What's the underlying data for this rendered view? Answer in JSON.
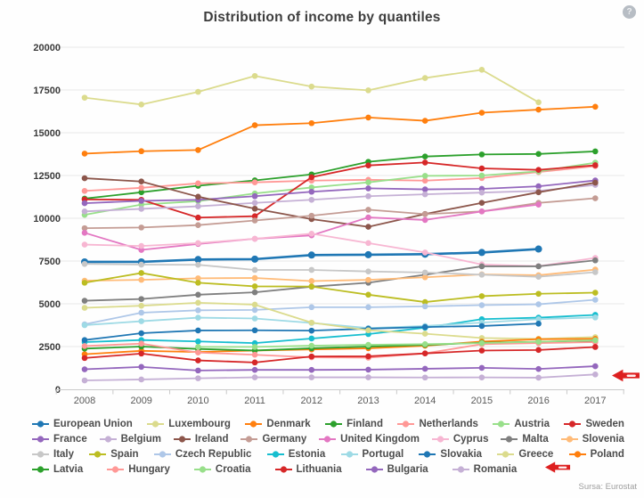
{
  "header": {
    "title": "Distribution of income by quantiles",
    "help_icon_glyph": "?"
  },
  "footer": {
    "source": "Sursa: Eurostat"
  },
  "annotation": {
    "arrow_color": "#dd1f1f",
    "arrows": [
      {
        "type": "arrow-left",
        "target": "Romania 2017 data point (lowest line, right edge of plot)"
      },
      {
        "type": "arrow-left",
        "target": "Romania legend item"
      }
    ]
  },
  "chart_data": {
    "type": "line",
    "title": "Distribution of income by quantiles",
    "x": [
      2008,
      2009,
      2010,
      2011,
      2012,
      2013,
      2014,
      2015,
      2016,
      2017
    ],
    "ylim": [
      0,
      20000
    ],
    "ytick_step": 2500,
    "grid": "horizontal",
    "legend_position": "bottom",
    "legend_rows": [
      7,
      8,
      8,
      6
    ],
    "series": [
      {
        "name": "European Union",
        "color": "#1f77b4",
        "values": [
          7450,
          7450,
          7590,
          7610,
          7850,
          7870,
          7900,
          8000,
          8200,
          null
        ]
      },
      {
        "name": "Luxembourg",
        "color": "#dbdb8d",
        "values": [
          17050,
          16650,
          17390,
          18320,
          17700,
          17480,
          18200,
          18680,
          16780,
          null
        ]
      },
      {
        "name": "Denmark",
        "color": "#ff7f0e",
        "values": [
          13780,
          13920,
          13990,
          15440,
          15560,
          15890,
          15700,
          16170,
          16350,
          16520
        ]
      },
      {
        "name": "Finland",
        "color": "#2ca02c",
        "values": [
          11150,
          11520,
          11900,
          12215,
          12565,
          13300,
          13610,
          13730,
          13760,
          13910
        ]
      },
      {
        "name": "Netherlands",
        "color": "#ff9896",
        "values": [
          11600,
          11780,
          12040,
          12100,
          12200,
          12250,
          12200,
          12350,
          12700,
          13050
        ]
      },
      {
        "name": "Austria",
        "color": "#98df8a",
        "values": [
          10200,
          10800,
          11000,
          11450,
          11800,
          12100,
          12480,
          12500,
          12740,
          13250
        ]
      },
      {
        "name": "Sweden",
        "color": "#d62728",
        "values": [
          11100,
          11080,
          10040,
          10120,
          12400,
          13090,
          13260,
          12915,
          12830,
          13100
        ]
      },
      {
        "name": "France",
        "color": "#9467bd",
        "values": [
          10880,
          11020,
          11080,
          11290,
          11550,
          11750,
          11690,
          11720,
          11870,
          12210
        ]
      },
      {
        "name": "Belgium",
        "color": "#c5b0d5",
        "values": [
          10400,
          10550,
          10700,
          10900,
          11080,
          11290,
          11400,
          11500,
          11600,
          11950
        ]
      },
      {
        "name": "Ireland",
        "color": "#8c564b",
        "values": [
          12340,
          12150,
          11260,
          10560,
          9950,
          9500,
          10250,
          10900,
          11520,
          12080
        ]
      },
      {
        "name": "Germany",
        "color": "#c49c94",
        "values": [
          9420,
          9460,
          9600,
          9870,
          10150,
          10500,
          10240,
          10400,
          10900,
          11170
        ]
      },
      {
        "name": "United Kingdom",
        "color": "#e377c2",
        "values": [
          9150,
          8150,
          8500,
          8800,
          9000,
          10050,
          9900,
          10400,
          10800,
          null
        ]
      },
      {
        "name": "Cyprus",
        "color": "#f7b6d2",
        "values": [
          8460,
          8380,
          8550,
          8800,
          9100,
          8550,
          8000,
          7300,
          7200,
          7680
        ]
      },
      {
        "name": "Malta",
        "color": "#7f7f7f",
        "values": [
          5180,
          5280,
          5530,
          5670,
          6000,
          6230,
          6700,
          7190,
          7190,
          7540
        ]
      },
      {
        "name": "Slovenia",
        "color": "#ffbb78",
        "values": [
          6350,
          6400,
          6490,
          6510,
          6330,
          6400,
          6550,
          6720,
          6670,
          7000
        ]
      },
      {
        "name": "Italy",
        "color": "#c7c7c7",
        "values": [
          7330,
          7290,
          7280,
          6980,
          6980,
          6890,
          6830,
          6700,
          6580,
          6850
        ]
      },
      {
        "name": "Spain",
        "color": "#bcbd22",
        "values": [
          6230,
          6800,
          6230,
          6020,
          6010,
          5530,
          5100,
          5445,
          5585,
          5650
        ]
      },
      {
        "name": "Czech Republic",
        "color": "#aec7e8",
        "values": [
          3800,
          4480,
          4620,
          4640,
          4800,
          4800,
          4850,
          4920,
          4970,
          5235
        ]
      },
      {
        "name": "Estonia",
        "color": "#17becf",
        "values": [
          2760,
          2880,
          2800,
          2700,
          2970,
          3230,
          3600,
          4100,
          4190,
          4350
        ]
      },
      {
        "name": "Portugal",
        "color": "#9edae5",
        "values": [
          3750,
          3980,
          4190,
          4140,
          3880,
          3580,
          3700,
          3900,
          4100,
          4200
        ]
      },
      {
        "name": "Slovakia",
        "color": "#1f77b4",
        "values": [
          2880,
          3280,
          3440,
          3450,
          3430,
          3545,
          3640,
          3700,
          3840,
          null
        ]
      },
      {
        "name": "Greece",
        "color": "#dbdb8d",
        "values": [
          4765,
          4885,
          5060,
          4950,
          3900,
          3450,
          3250,
          3000,
          2950,
          3050
        ]
      },
      {
        "name": "Poland",
        "color": "#ff7f0e",
        "values": [
          2050,
          2250,
          2180,
          2270,
          2330,
          2400,
          2550,
          2790,
          2930,
          2950
        ]
      },
      {
        "name": "Latvia",
        "color": "#2ca02c",
        "values": [
          2380,
          2500,
          2360,
          2270,
          2400,
          2500,
          2600,
          2720,
          2780,
          2840
        ]
      },
      {
        "name": "Hungary",
        "color": "#ff9896",
        "values": [
          2530,
          2670,
          2150,
          2020,
          1870,
          1850,
          2100,
          2640,
          2700,
          2760
        ]
      },
      {
        "name": "Croatia",
        "color": "#98df8a",
        "values": [
          null,
          null,
          2480,
          2480,
          2550,
          2600,
          2640,
          2700,
          2780,
          2870
        ]
      },
      {
        "name": "Lithuania",
        "color": "#d62728",
        "values": [
          1830,
          2090,
          1690,
          1570,
          1920,
          1930,
          2100,
          2265,
          2300,
          2475
        ]
      },
      {
        "name": "Bulgaria",
        "color": "#9467bd",
        "values": [
          1170,
          1310,
          1100,
          1135,
          1135,
          1150,
          1200,
          1255,
          1190,
          1350
        ]
      },
      {
        "name": "Romania",
        "color": "#c5b0d5",
        "values": [
          520,
          575,
          645,
          700,
          700,
          700,
          690,
          695,
          680,
          870
        ]
      }
    ]
  }
}
